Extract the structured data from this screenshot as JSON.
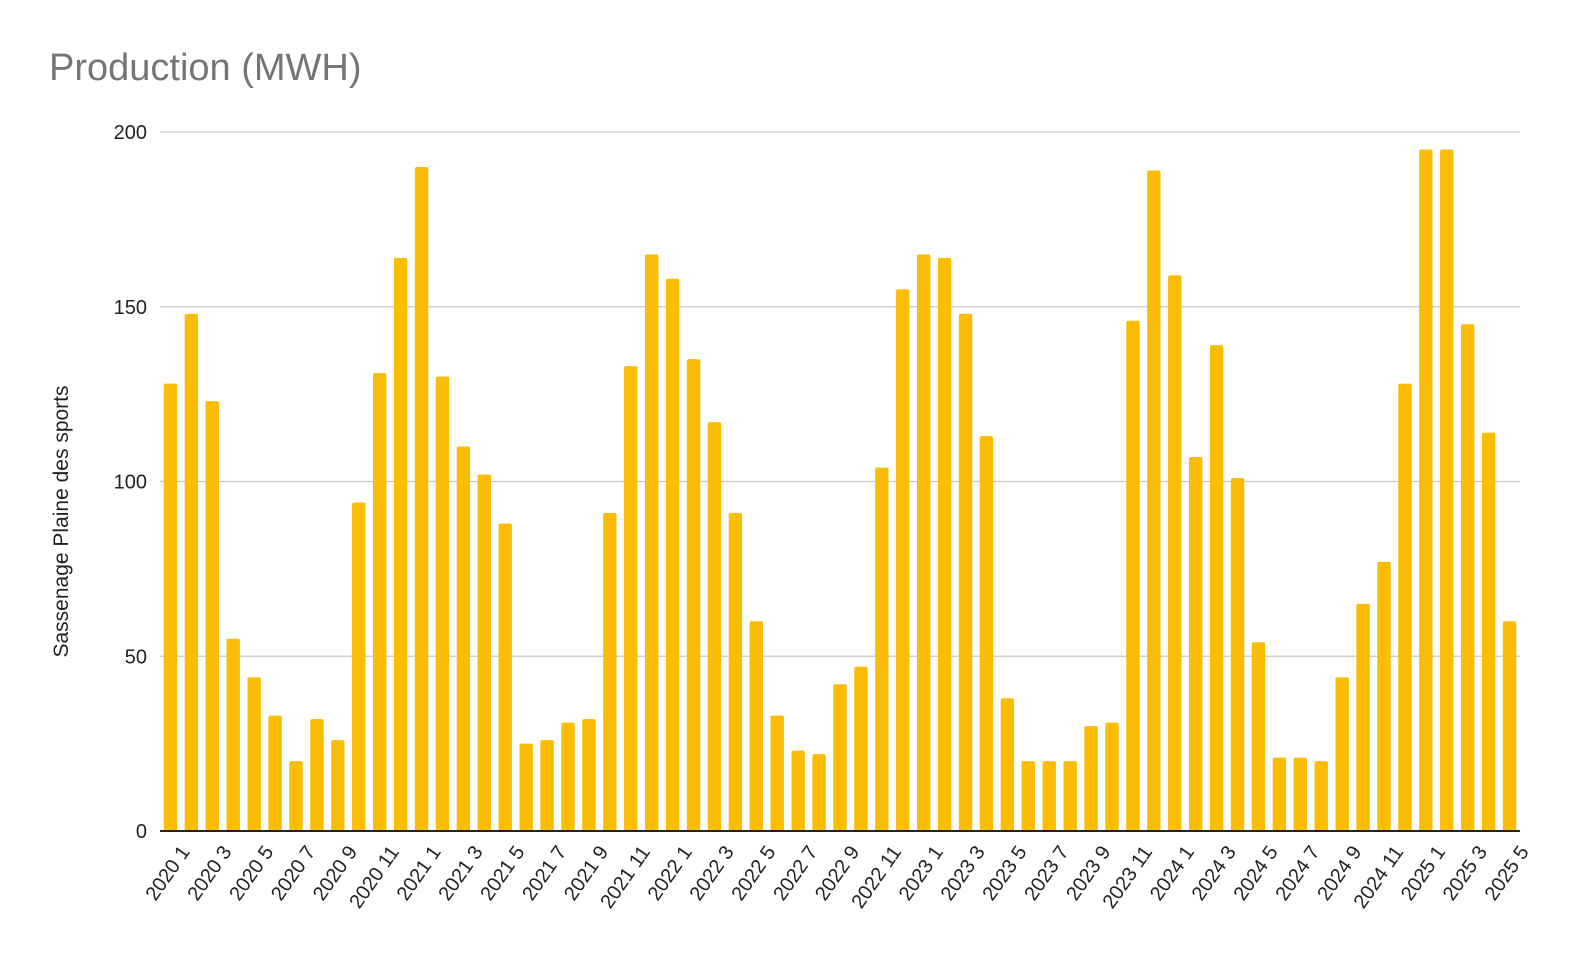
{
  "chart_data": {
    "type": "bar",
    "title": "Production (MWH)",
    "xlabel": "",
    "ylabel": "Sassenage Plaine des sports",
    "ylim": [
      0,
      200
    ],
    "yticks": [
      0,
      50,
      100,
      150,
      200
    ],
    "grid": true,
    "legend": "none",
    "bar_color": "#fbbc04",
    "categories": [
      "2020 1",
      "2020 2",
      "2020 3",
      "2020 4",
      "2020 5",
      "2020 6",
      "2020 7",
      "2020 8",
      "2020 9",
      "2020 10",
      "2020 11",
      "2020 12",
      "2021 1",
      "2021 2",
      "2021 3",
      "2021 4",
      "2021 5",
      "2021 6",
      "2021 7",
      "2021 8",
      "2021 9",
      "2021 10",
      "2021 11",
      "2021 12",
      "2022 1",
      "2022 2",
      "2022 3",
      "2022 4",
      "2022 5",
      "2022 6",
      "2022 7",
      "2022 8",
      "2022 9",
      "2022 10",
      "2022 11",
      "2022 12",
      "2023 1",
      "2023 2",
      "2023 3",
      "2023 4",
      "2023 5",
      "2023 6",
      "2023 7",
      "2023 8",
      "2023 9",
      "2023 10",
      "2023 11",
      "2023 12",
      "2024 1",
      "2024 2",
      "2024 3",
      "2024 4",
      "2024 5",
      "2024 6",
      "2024 7",
      "2024 8",
      "2024 9",
      "2024 10",
      "2024 11",
      "2024 12",
      "2025 1",
      "2025 2",
      "2025 3",
      "2025 4",
      "2025 5"
    ],
    "values": [
      128,
      148,
      123,
      55,
      44,
      33,
      20,
      32,
      26,
      94,
      131,
      164,
      190,
      130,
      110,
      102,
      88,
      25,
      26,
      31,
      32,
      91,
      133,
      165,
      158,
      135,
      117,
      91,
      60,
      33,
      23,
      22,
      42,
      47,
      104,
      155,
      165,
      164,
      148,
      113,
      38,
      20,
      20,
      20,
      30,
      31,
      146,
      189,
      159,
      107,
      139,
      101,
      54,
      21,
      21,
      20,
      44,
      65,
      77,
      128,
      195,
      195,
      145,
      114,
      60
    ]
  }
}
